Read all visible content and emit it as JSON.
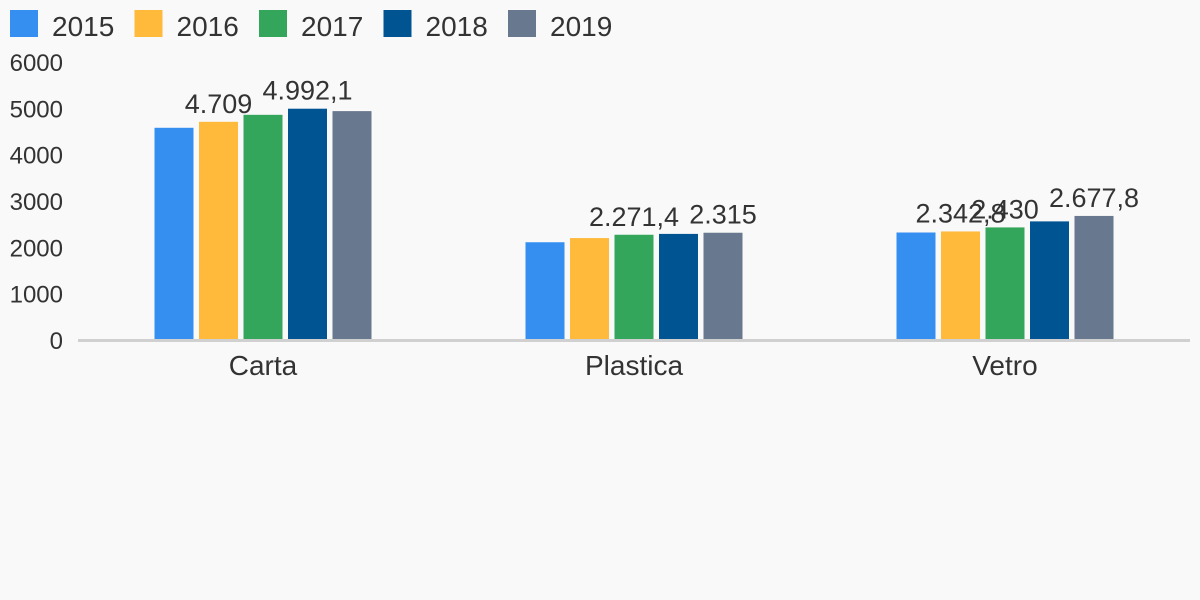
{
  "chart_data": {
    "type": "bar",
    "title": "",
    "xlabel": "",
    "ylabel": "",
    "categories": [
      "Carta",
      "Plastica",
      "Vetro"
    ],
    "ylim": [
      0,
      6000
    ],
    "yticks": [
      0,
      1000,
      2000,
      3000,
      4000,
      5000,
      6000
    ],
    "grid": false,
    "legend_position": "top-left",
    "series": [
      {
        "name": "2015",
        "color": "#348ff0",
        "values": [
          4580,
          2110,
          2320
        ]
      },
      {
        "name": "2016",
        "color": "#ffb93b",
        "values": [
          4709,
          2200,
          2342.8
        ]
      },
      {
        "name": "2017",
        "color": "#33a65b",
        "values": [
          4860,
          2271.4,
          2430
        ]
      },
      {
        "name": "2018",
        "color": "#005492",
        "values": [
          4992.1,
          2290,
          2560
        ]
      },
      {
        "name": "2019",
        "color": "#68788e",
        "values": [
          4940,
          2315,
          2677.8
        ]
      }
    ],
    "data_labels": [
      {
        "category": 0,
        "series": 1,
        "text": "4.709"
      },
      {
        "category": 0,
        "series": 3,
        "text": "4.992,1"
      },
      {
        "category": 1,
        "series": 2,
        "text": "2.271,4"
      },
      {
        "category": 1,
        "series": 4,
        "text": "2.315"
      },
      {
        "category": 2,
        "series": 1,
        "text": "2.342,8"
      },
      {
        "category": 2,
        "series": 2,
        "text": "2.430"
      },
      {
        "category": 2,
        "series": 4,
        "text": "2.677,8"
      }
    ]
  }
}
